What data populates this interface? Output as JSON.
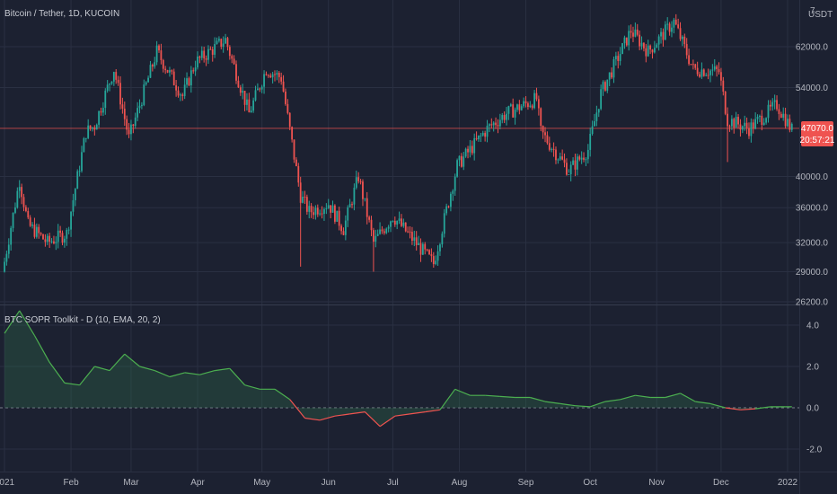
{
  "header": {
    "title": "Bitcoin / Tether, 1D, KUCOIN",
    "currency": "USDT",
    "scale_icon": "7"
  },
  "indicator": {
    "title": "BTC SOPR Toolkit - D (10, EMA, 20, 2)"
  },
  "price_axis": {
    "ticks": [
      "62000.0",
      "54000.0",
      "40000.0",
      "36000.0",
      "32000.0",
      "29000.0",
      "26200.0"
    ]
  },
  "osc_axis": {
    "ticks": [
      "4.0",
      "2.0",
      "0.0",
      "-2.0"
    ]
  },
  "last_price": {
    "value": "47070.0",
    "countdown": "20:57:21"
  },
  "time_axis": {
    "ticks": [
      "2021",
      "Feb",
      "Mar",
      "Apr",
      "May",
      "Jun",
      "Jul",
      "Aug",
      "Sep",
      "Oct",
      "Nov",
      "Dec",
      "2022"
    ]
  },
  "colors": {
    "up": "#26a69a",
    "down": "#ef5350",
    "osc_pos": "#4caf50",
    "osc_neg": "#ef5350",
    "bg": "#1c2131",
    "grid": "#2a3042"
  },
  "chart_data": [
    {
      "type": "candlestick",
      "title": "Bitcoin / Tether, 1D, KUCOIN",
      "x_range": [
        "2021-01-01",
        "2022-01-03"
      ],
      "y_scale": "log",
      "ylim": [
        26200,
        70000
      ],
      "monthly_close": [
        {
          "x": "2021-01",
          "y": 33100
        },
        {
          "x": "2021-02",
          "y": 45200
        },
        {
          "x": "2021-03",
          "y": 58800
        },
        {
          "x": "2021-04",
          "y": 57700
        },
        {
          "x": "2021-05",
          "y": 37300
        },
        {
          "x": "2021-06",
          "y": 35000
        },
        {
          "x": "2021-07",
          "y": 41500
        },
        {
          "x": "2021-08",
          "y": 47100
        },
        {
          "x": "2021-09",
          "y": 43800
        },
        {
          "x": "2021-10",
          "y": 61300
        },
        {
          "x": "2021-11",
          "y": 57000
        },
        {
          "x": "2021-12",
          "y": 46300
        }
      ],
      "key_points": [
        {
          "x": "2021-02-21",
          "y": 58000
        },
        {
          "x": "2021-03-13",
          "y": 61500
        },
        {
          "x": "2021-04-14",
          "y": 64800
        },
        {
          "x": "2021-05-19",
          "y": 30000
        },
        {
          "x": "2021-06-22",
          "y": 29000
        },
        {
          "x": "2021-07-20",
          "y": 29500
        },
        {
          "x": "2021-09-07",
          "y": 52900
        },
        {
          "x": "2021-10-20",
          "y": 67000
        },
        {
          "x": "2021-11-10",
          "y": 69000
        },
        {
          "x": "2021-12-04",
          "y": 42000
        }
      ],
      "last_price": 47070.0
    },
    {
      "type": "area",
      "title": "BTC SOPR Toolkit - D (10, EMA, 20, 2)",
      "ylim": [
        -3,
        4.8
      ],
      "zero_line": 0,
      "series": [
        {
          "values": [
            {
              "x": "2021-01-01",
              "y": 3.6
            },
            {
              "x": "2021-01-08",
              "y": 4.7
            },
            {
              "x": "2021-01-15",
              "y": 3.5
            },
            {
              "x": "2021-01-22",
              "y": 2.2
            },
            {
              "x": "2021-01-29",
              "y": 1.2
            },
            {
              "x": "2021-02-05",
              "y": 1.1
            },
            {
              "x": "2021-02-12",
              "y": 2.0
            },
            {
              "x": "2021-02-19",
              "y": 1.8
            },
            {
              "x": "2021-02-26",
              "y": 2.6
            },
            {
              "x": "2021-03-05",
              "y": 2.0
            },
            {
              "x": "2021-03-12",
              "y": 1.8
            },
            {
              "x": "2021-03-19",
              "y": 1.5
            },
            {
              "x": "2021-03-26",
              "y": 1.7
            },
            {
              "x": "2021-04-02",
              "y": 1.6
            },
            {
              "x": "2021-04-09",
              "y": 1.8
            },
            {
              "x": "2021-04-16",
              "y": 1.9
            },
            {
              "x": "2021-04-23",
              "y": 1.1
            },
            {
              "x": "2021-04-30",
              "y": 0.9
            },
            {
              "x": "2021-05-07",
              "y": 0.9
            },
            {
              "x": "2021-05-14",
              "y": 0.4
            },
            {
              "x": "2021-05-21",
              "y": -0.5
            },
            {
              "x": "2021-05-28",
              "y": -0.6
            },
            {
              "x": "2021-06-04",
              "y": -0.4
            },
            {
              "x": "2021-06-11",
              "y": -0.3
            },
            {
              "x": "2021-06-18",
              "y": -0.2
            },
            {
              "x": "2021-06-25",
              "y": -0.9
            },
            {
              "x": "2021-07-02",
              "y": -0.4
            },
            {
              "x": "2021-07-09",
              "y": -0.3
            },
            {
              "x": "2021-07-16",
              "y": -0.2
            },
            {
              "x": "2021-07-23",
              "y": -0.1
            },
            {
              "x": "2021-07-30",
              "y": 0.9
            },
            {
              "x": "2021-08-06",
              "y": 0.6
            },
            {
              "x": "2021-08-13",
              "y": 0.6
            },
            {
              "x": "2021-08-20",
              "y": 0.55
            },
            {
              "x": "2021-08-27",
              "y": 0.5
            },
            {
              "x": "2021-09-03",
              "y": 0.5
            },
            {
              "x": "2021-09-10",
              "y": 0.3
            },
            {
              "x": "2021-09-17",
              "y": 0.2
            },
            {
              "x": "2021-09-24",
              "y": 0.1
            },
            {
              "x": "2021-10-01",
              "y": 0.05
            },
            {
              "x": "2021-10-08",
              "y": 0.3
            },
            {
              "x": "2021-10-15",
              "y": 0.4
            },
            {
              "x": "2021-10-22",
              "y": 0.6
            },
            {
              "x": "2021-10-29",
              "y": 0.5
            },
            {
              "x": "2021-11-05",
              "y": 0.5
            },
            {
              "x": "2021-11-12",
              "y": 0.7
            },
            {
              "x": "2021-11-19",
              "y": 0.3
            },
            {
              "x": "2021-11-26",
              "y": 0.2
            },
            {
              "x": "2021-12-03",
              "y": 0.0
            },
            {
              "x": "2021-12-10",
              "y": -0.1
            },
            {
              "x": "2021-12-17",
              "y": -0.05
            },
            {
              "x": "2021-12-24",
              "y": 0.05
            },
            {
              "x": "2021-12-31",
              "y": 0.05
            },
            {
              "x": "2022-01-03",
              "y": 0.05
            }
          ]
        }
      ]
    }
  ]
}
